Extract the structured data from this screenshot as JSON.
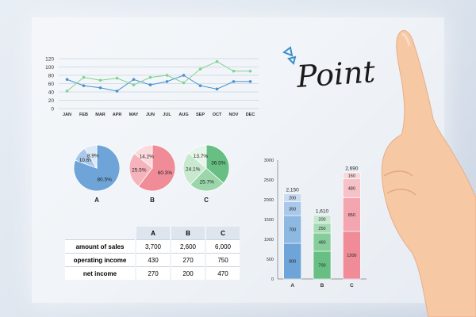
{
  "point_text": "Point",
  "colors": {
    "blue": "#6fa4d8",
    "pink": "#ef8c98",
    "green": "#68bf83",
    "line_blue": "#4a8fd0",
    "line_green": "#80d392"
  },
  "chart_data": [
    {
      "type": "line",
      "x": [
        "JAN",
        "FEB",
        "MAR",
        "APR",
        "MAY",
        "JUN",
        "JUL",
        "AUG",
        "SEP",
        "OCT",
        "NOV",
        "DEC"
      ],
      "yticks": [
        0,
        20,
        40,
        60,
        80,
        100,
        120
      ],
      "ylim": [
        0,
        120
      ],
      "grid": true,
      "series": [
        {
          "color": "blue",
          "values": [
            70,
            55,
            50,
            42,
            70,
            57,
            65,
            80,
            55,
            47,
            65,
            65
          ]
        },
        {
          "color": "green",
          "values": [
            42,
            75,
            68,
            73,
            57,
            75,
            80,
            62,
            95,
            113,
            90,
            90
          ]
        }
      ]
    },
    {
      "type": "pie",
      "label": "A",
      "slices": [
        {
          "label": "80.5%",
          "value": 80.5
        },
        {
          "label": "10.6%",
          "value": 10.6
        },
        {
          "label": "8.9%",
          "value": 8.9
        }
      ]
    },
    {
      "type": "pie",
      "label": "B",
      "slices": [
        {
          "label": "60.3%",
          "value": 60.3
        },
        {
          "label": "25.5%",
          "value": 25.5
        },
        {
          "label": "14.2%",
          "value": 14.2
        }
      ]
    },
    {
      "type": "pie",
      "label": "C",
      "slices": [
        {
          "label": "36.5%",
          "value": 36.5
        },
        {
          "label": "25.7%",
          "value": 25.7
        },
        {
          "label": "24.1%",
          "value": 24.1
        },
        {
          "label": "13.7%",
          "value": 13.7
        }
      ]
    },
    {
      "type": "bar",
      "stacked": true,
      "categories": [
        "A",
        "B",
        "C"
      ],
      "ylim": [
        0,
        3000
      ],
      "yticks": [
        0,
        500,
        1000,
        1500,
        2000,
        2500,
        3000
      ],
      "totals": [
        "2,150",
        "1,610",
        "2,690"
      ],
      "stacks": [
        {
          "color": "blue",
          "segments": [
            900,
            700,
            350,
            200
          ]
        },
        {
          "color": "green",
          "segments": [
            700,
            460,
            250,
            200
          ]
        },
        {
          "color": "pink",
          "segments": [
            1200,
            850,
            480,
            160
          ]
        }
      ]
    },
    {
      "type": "table",
      "columns": [
        "A",
        "B",
        "C"
      ],
      "rows": [
        {
          "label": "amount of sales",
          "values": [
            "3,700",
            "2,600",
            "6,000"
          ]
        },
        {
          "label": "operating income",
          "values": [
            "430",
            "270",
            "750"
          ]
        },
        {
          "label": "net income",
          "values": [
            "270",
            "200",
            "470"
          ]
        }
      ]
    }
  ]
}
